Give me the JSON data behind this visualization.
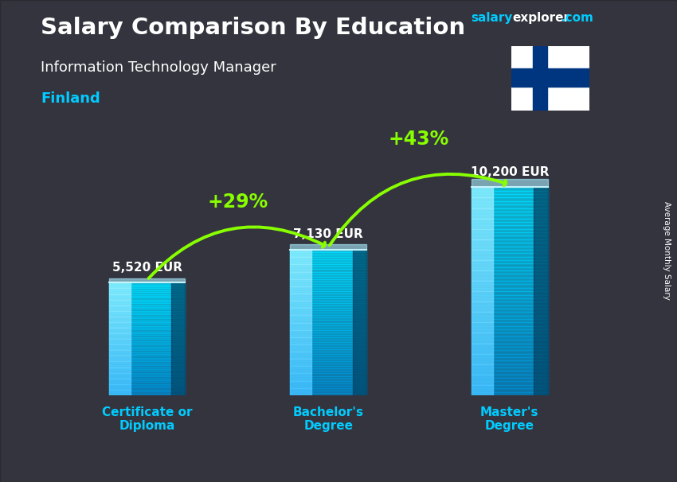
{
  "title_main": "Salary Comparison By Education",
  "title_sub": "Information Technology Manager",
  "title_country": "Finland",
  "ylabel": "Average Monthly Salary",
  "categories": [
    "Certificate or\nDiploma",
    "Bachelor's\nDegree",
    "Master's\nDegree"
  ],
  "values": [
    5520,
    7130,
    10200
  ],
  "value_labels": [
    "5,520 EUR",
    "7,130 EUR",
    "10,200 EUR"
  ],
  "pct_labels": [
    "+29%",
    "+43%"
  ],
  "bar_alpha": 0.75,
  "bar_color_main": "#00b8e8",
  "bar_color_light": "#40d8ff",
  "bar_color_dark": "#0088bb",
  "bar_top_color": "#80eeff",
  "bg_color": "#404050",
  "title_color": "#ffffff",
  "country_color": "#00ccff",
  "pct_color": "#88ff00",
  "value_color": "#ffffff",
  "cat_color": "#00ccff",
  "website_salary_color": "#00ccff",
  "website_explorer_color": "#ffffff",
  "website_com_color": "#00ccff",
  "flag_blue": "#003580",
  "flag_white": "#ffffff",
  "max_val": 13000,
  "x_positions": [
    0,
    1,
    2
  ],
  "bar_width": 0.42
}
